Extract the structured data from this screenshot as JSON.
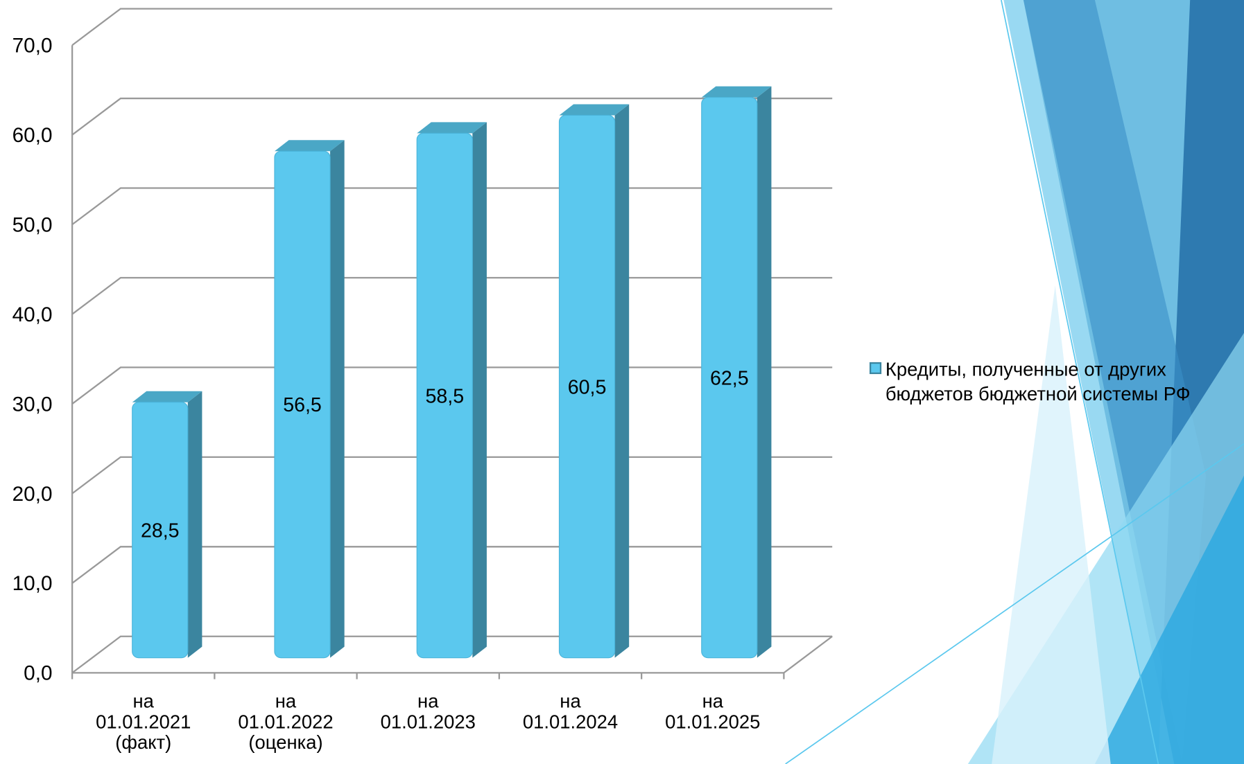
{
  "chart_data": {
    "type": "bar3d",
    "categories": [
      "на\n01.01.2021\n(факт)",
      "на\n01.01.2022\n(оценка)",
      "на\n01.01.2023",
      "на\n01.01.2024",
      "на\n01.01.2025"
    ],
    "series": [
      {
        "name": "Кредиты, полученные от других\nбюджетов бюджетной системы РФ",
        "color": "#5bc8ee",
        "values": [
          28.5,
          56.5,
          58.5,
          60.5,
          62.5
        ],
        "value_labels": [
          "28,5",
          "56,5",
          "58,5",
          "60,5",
          "62,5"
        ]
      }
    ],
    "ylim": [
      0,
      70
    ],
    "yticks": [
      {
        "value": 0,
        "label": "0,0"
      },
      {
        "value": 10,
        "label": "10,0"
      },
      {
        "value": 20,
        "label": "20,0"
      },
      {
        "value": 30,
        "label": "30,0"
      },
      {
        "value": 40,
        "label": "40,0"
      },
      {
        "value": 50,
        "label": "50,0"
      },
      {
        "value": 60,
        "label": "60,0"
      },
      {
        "value": 70,
        "label": "70,0"
      }
    ],
    "grid": true,
    "legend": "right"
  }
}
